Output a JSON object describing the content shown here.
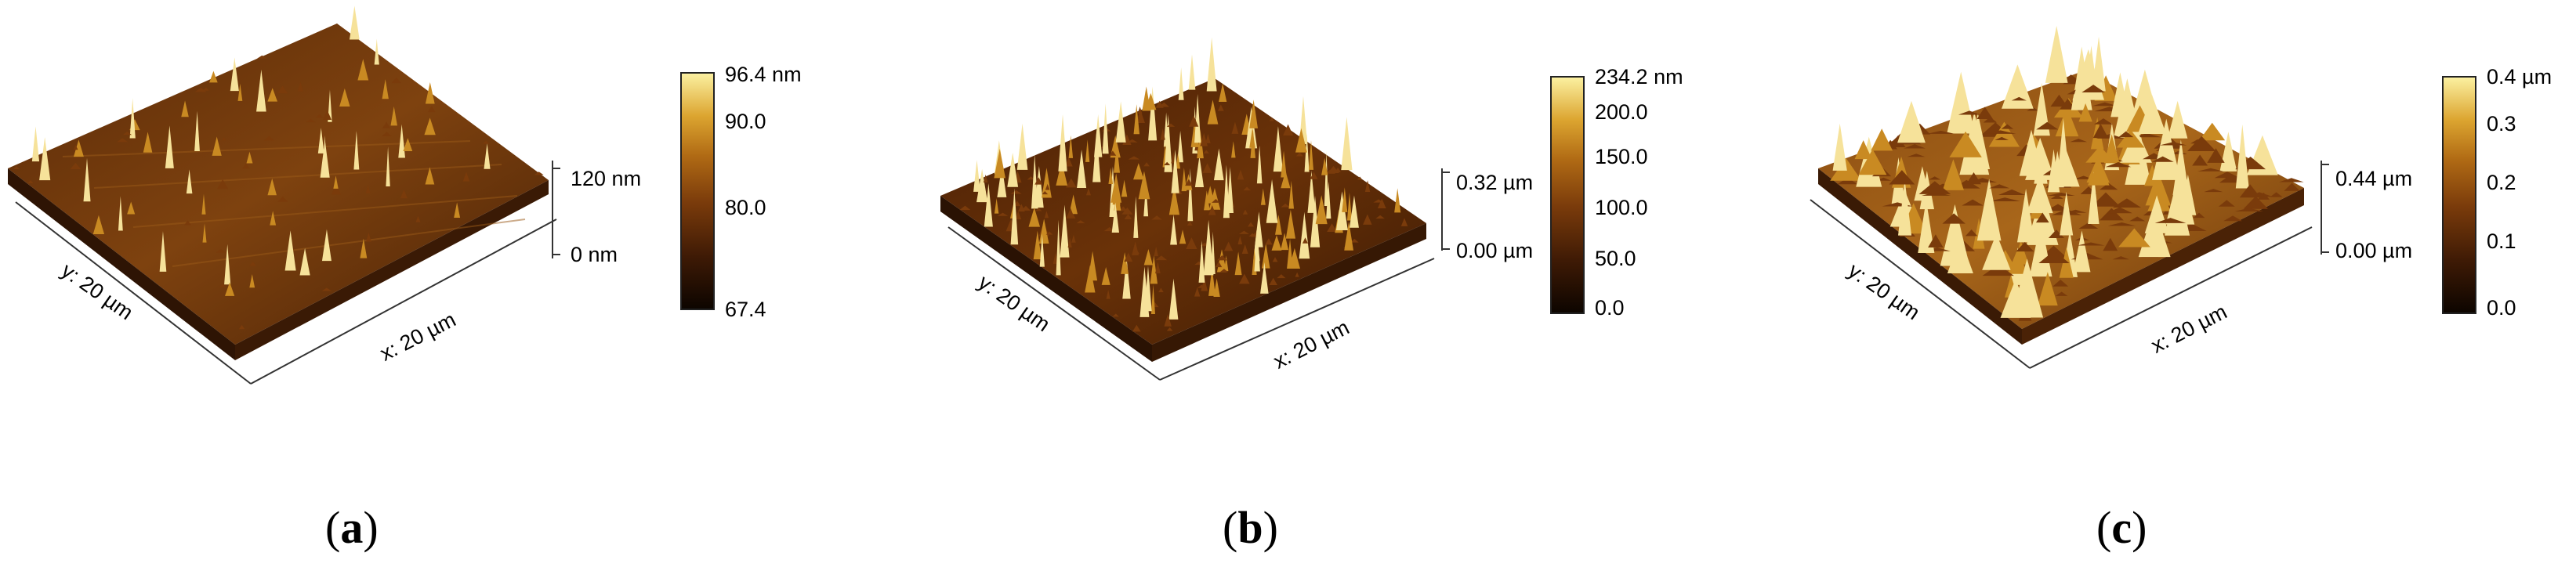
{
  "panels": [
    {
      "caption_open": "(",
      "caption_letter": "a",
      "caption_close": ")",
      "x_axis_label": "x: 20 µm",
      "y_axis_label": "y: 20 µm",
      "z_labels": [
        "120 nm",
        "0 nm"
      ],
      "colorbar_ticks": [
        "96.4 nm",
        "90.0",
        "80.0",
        "67.4"
      ]
    },
    {
      "caption_open": "(",
      "caption_letter": "b",
      "caption_close": ")",
      "x_axis_label": "x: 20 µm",
      "y_axis_label": "y: 20 µm",
      "z_labels": [
        "0.32 µm",
        "0.00 µm"
      ],
      "colorbar_ticks": [
        "234.2 nm",
        "200.0",
        "150.0",
        "100.0",
        "50.0",
        "0.0"
      ]
    },
    {
      "caption_open": "(",
      "caption_letter": "c",
      "caption_close": ")",
      "x_axis_label": "x: 20 µm",
      "y_axis_label": "y: 20 µm",
      "z_labels": [
        "0.44 µm",
        "0.00 µm"
      ],
      "colorbar_ticks": [
        "0.4 µm",
        "0.3",
        "0.2",
        "0.1",
        "0.0"
      ]
    }
  ],
  "colors": {
    "surface_dark": "#3e1a05",
    "surface_mid": "#7a3b0b",
    "surface_light": "#c98a22",
    "peak": "#f6e29a"
  }
}
